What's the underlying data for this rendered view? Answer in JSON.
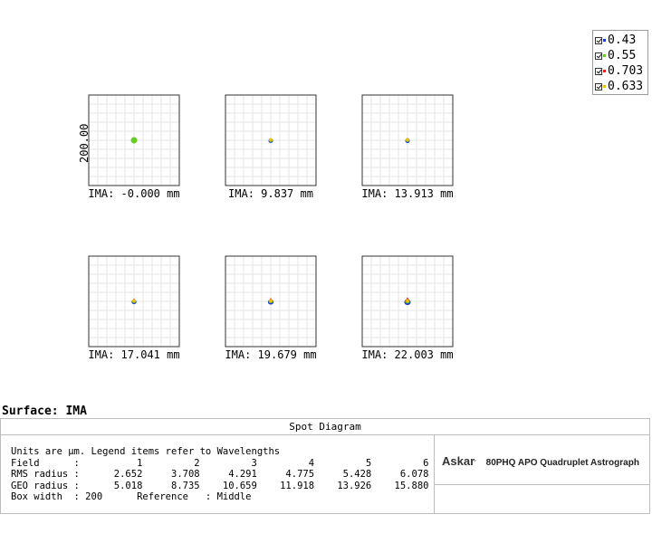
{
  "legend": {
    "items": [
      {
        "label": "0.43",
        "color": "#1f3fd6"
      },
      {
        "label": "0.55",
        "color": "#66cc22"
      },
      {
        "label": "0.703",
        "color": "#e02020"
      },
      {
        "label": "0.633",
        "color": "#f0c000"
      }
    ]
  },
  "surface": {
    "title": "Surface: IMA"
  },
  "info": {
    "title": "Spot Diagram",
    "text": "Units are µm. Legend items refer to Wavelengths\nField      :          1         2         3         4         5         6\nRMS radius :      2.652     3.708     4.291     4.775     5.428     6.078\nGEO radius :      5.018     8.735    10.659    11.918    13.926    15.880\nBox width  : 200      Reference   : Middle",
    "brand": {
      "logo": "Askar",
      "sup": "′",
      "product": "80PHQ APO Quadruplet Astrograph"
    }
  },
  "chart_data": {
    "type": "scatter",
    "title": "Spot Diagram",
    "box_width_um": 200,
    "scale_label": "200.00",
    "wavelengths": [
      "0.43",
      "0.55",
      "0.703",
      "0.633"
    ],
    "fields": [
      {
        "field": 1,
        "ima_label": "IMA: -0.000 mm",
        "rms_radius": 2.652,
        "geo_radius": 5.018
      },
      {
        "field": 2,
        "ima_label": "IMA: 9.837 mm",
        "rms_radius": 3.708,
        "geo_radius": 8.735
      },
      {
        "field": 3,
        "ima_label": "IMA: 13.913 mm",
        "rms_radius": 4.291,
        "geo_radius": 10.659
      },
      {
        "field": 4,
        "ima_label": "IMA: 17.041 mm",
        "rms_radius": 4.775,
        "geo_radius": 11.918
      },
      {
        "field": 5,
        "ima_label": "IMA: 19.679 mm",
        "rms_radius": 5.428,
        "geo_radius": 13.926
      },
      {
        "field": 6,
        "ima_label": "IMA: 22.003 mm",
        "rms_radius": 6.078,
        "geo_radius": 15.88
      }
    ]
  }
}
